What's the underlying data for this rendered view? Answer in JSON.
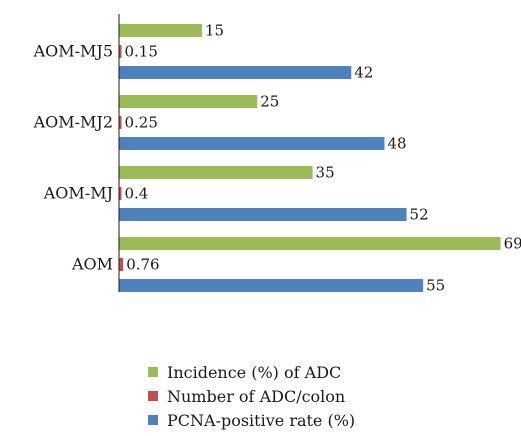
{
  "chart_data": {
    "type": "bar",
    "orientation": "horizontal",
    "categories": [
      "AOM-MJ5",
      "AOM-MJ2",
      "AOM-MJ",
      "AOM"
    ],
    "series": [
      {
        "name": "Incidence (%) of ADC",
        "color": "#9bbb59",
        "values": [
          15,
          25,
          35,
          69
        ]
      },
      {
        "name": "Number of ADC/colon",
        "color": "#c0504d",
        "values": [
          0.15,
          0.25,
          0.4,
          0.76
        ]
      },
      {
        "name": "PCNA-positive rate (%)",
        "color": "#4f81bd",
        "values": [
          42,
          48,
          52,
          55
        ]
      }
    ],
    "data_labels": [
      [
        "15",
        "0.15",
        "42"
      ],
      [
        "25",
        "0.25",
        "48"
      ],
      [
        "35",
        "0.4",
        "52"
      ],
      [
        "69",
        "0.76",
        "55"
      ]
    ],
    "title": "",
    "xlabel": "",
    "ylabel": "",
    "xlim": [
      0,
      69
    ],
    "grid": false,
    "legend_position": "bottom"
  }
}
